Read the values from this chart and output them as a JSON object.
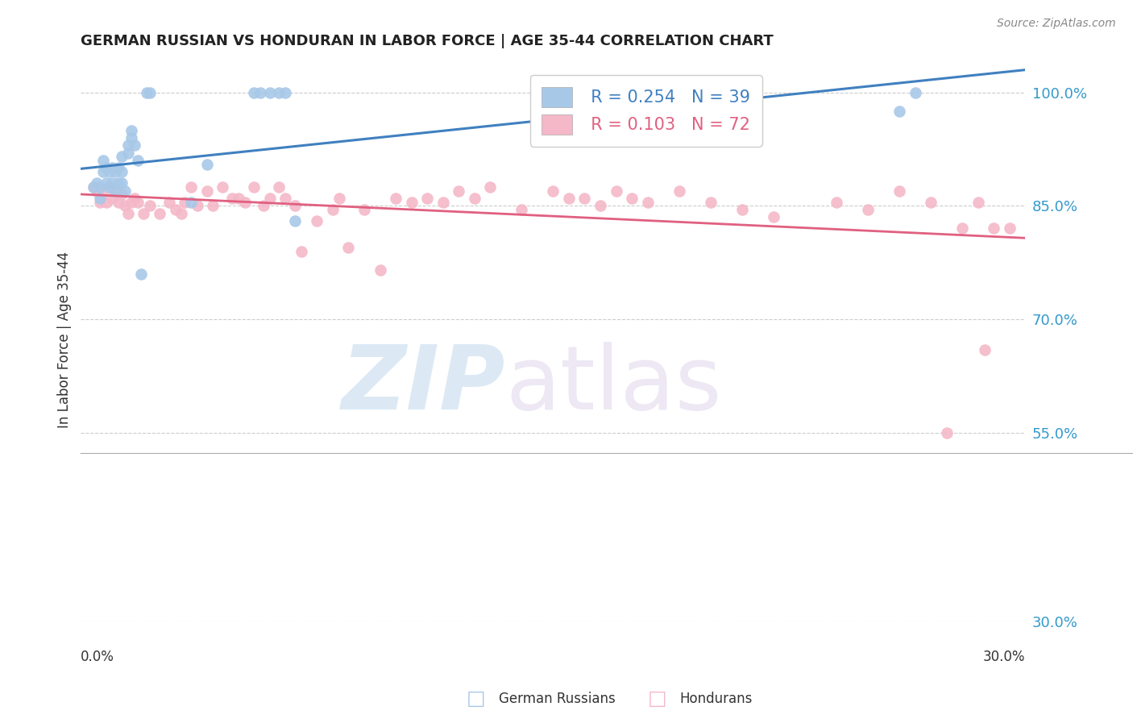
{
  "title": "GERMAN RUSSIAN VS HONDURAN IN LABOR FORCE | AGE 35-44 CORRELATION CHART",
  "source": "Source: ZipAtlas.com",
  "ylabel": "In Labor Force | Age 35-44",
  "legend_label_blue": "German Russians",
  "legend_label_pink": "Hondurans",
  "blue_color": "#a8c8e8",
  "pink_color": "#f4b8c8",
  "blue_edge_color": "#a8c8e8",
  "pink_edge_color": "#f4b8c8",
  "blue_line_color": "#4080c0",
  "pink_line_color": "#e06080",
  "blue_R": 0.254,
  "blue_N": 39,
  "pink_R": 0.103,
  "pink_N": 72,
  "xmin": 0.0,
  "xmax": 0.3,
  "ymin": 0.3,
  "ymax": 1.045,
  "ytick_vals": [
    0.3,
    0.55,
    0.7,
    0.85,
    1.0
  ],
  "ytick_labels": [
    "30.0%",
    "55.0%",
    "70.0%",
    "85.0%",
    "100.0%"
  ],
  "blue_scatter_x": [
    0.004,
    0.005,
    0.006,
    0.006,
    0.007,
    0.007,
    0.008,
    0.008,
    0.009,
    0.009,
    0.01,
    0.01,
    0.011,
    0.011,
    0.012,
    0.012,
    0.013,
    0.013,
    0.013,
    0.014,
    0.015,
    0.015,
    0.016,
    0.016,
    0.017,
    0.018,
    0.019,
    0.021,
    0.022,
    0.035,
    0.04,
    0.055,
    0.057,
    0.06,
    0.063,
    0.065,
    0.068,
    0.26,
    0.265
  ],
  "blue_scatter_y": [
    0.875,
    0.88,
    0.86,
    0.875,
    0.895,
    0.91,
    0.88,
    0.9,
    0.875,
    0.895,
    0.88,
    0.9,
    0.87,
    0.895,
    0.88,
    0.9,
    0.88,
    0.895,
    0.915,
    0.87,
    0.93,
    0.92,
    0.95,
    0.94,
    0.93,
    0.91,
    0.76,
    1.0,
    1.0,
    0.855,
    0.905,
    1.0,
    1.0,
    1.0,
    1.0,
    1.0,
    0.83,
    0.975,
    1.0
  ],
  "pink_scatter_x": [
    0.004,
    0.005,
    0.006,
    0.007,
    0.008,
    0.009,
    0.01,
    0.011,
    0.012,
    0.013,
    0.014,
    0.015,
    0.016,
    0.017,
    0.018,
    0.02,
    0.022,
    0.025,
    0.028,
    0.03,
    0.032,
    0.033,
    0.035,
    0.037,
    0.04,
    0.042,
    0.045,
    0.048,
    0.05,
    0.052,
    0.055,
    0.058,
    0.06,
    0.063,
    0.065,
    0.068,
    0.07,
    0.075,
    0.08,
    0.082,
    0.085,
    0.09,
    0.095,
    0.1,
    0.105,
    0.11,
    0.115,
    0.12,
    0.125,
    0.13,
    0.14,
    0.15,
    0.155,
    0.16,
    0.165,
    0.17,
    0.175,
    0.18,
    0.19,
    0.2,
    0.21,
    0.22,
    0.24,
    0.25,
    0.26,
    0.27,
    0.275,
    0.28,
    0.285,
    0.287,
    0.29,
    0.295
  ],
  "pink_scatter_y": [
    0.875,
    0.87,
    0.855,
    0.87,
    0.855,
    0.875,
    0.86,
    0.87,
    0.855,
    0.865,
    0.85,
    0.84,
    0.855,
    0.86,
    0.855,
    0.84,
    0.85,
    0.84,
    0.855,
    0.845,
    0.84,
    0.855,
    0.875,
    0.85,
    0.87,
    0.85,
    0.875,
    0.86,
    0.86,
    0.855,
    0.875,
    0.85,
    0.86,
    0.875,
    0.86,
    0.85,
    0.79,
    0.83,
    0.845,
    0.86,
    0.795,
    0.845,
    0.765,
    0.86,
    0.855,
    0.86,
    0.855,
    0.87,
    0.86,
    0.875,
    0.845,
    0.87,
    0.86,
    0.86,
    0.85,
    0.87,
    0.86,
    0.855,
    0.87,
    0.855,
    0.845,
    0.835,
    0.855,
    0.845,
    0.87,
    0.855,
    0.55,
    0.82,
    0.855,
    0.66,
    0.82,
    0.82
  ]
}
